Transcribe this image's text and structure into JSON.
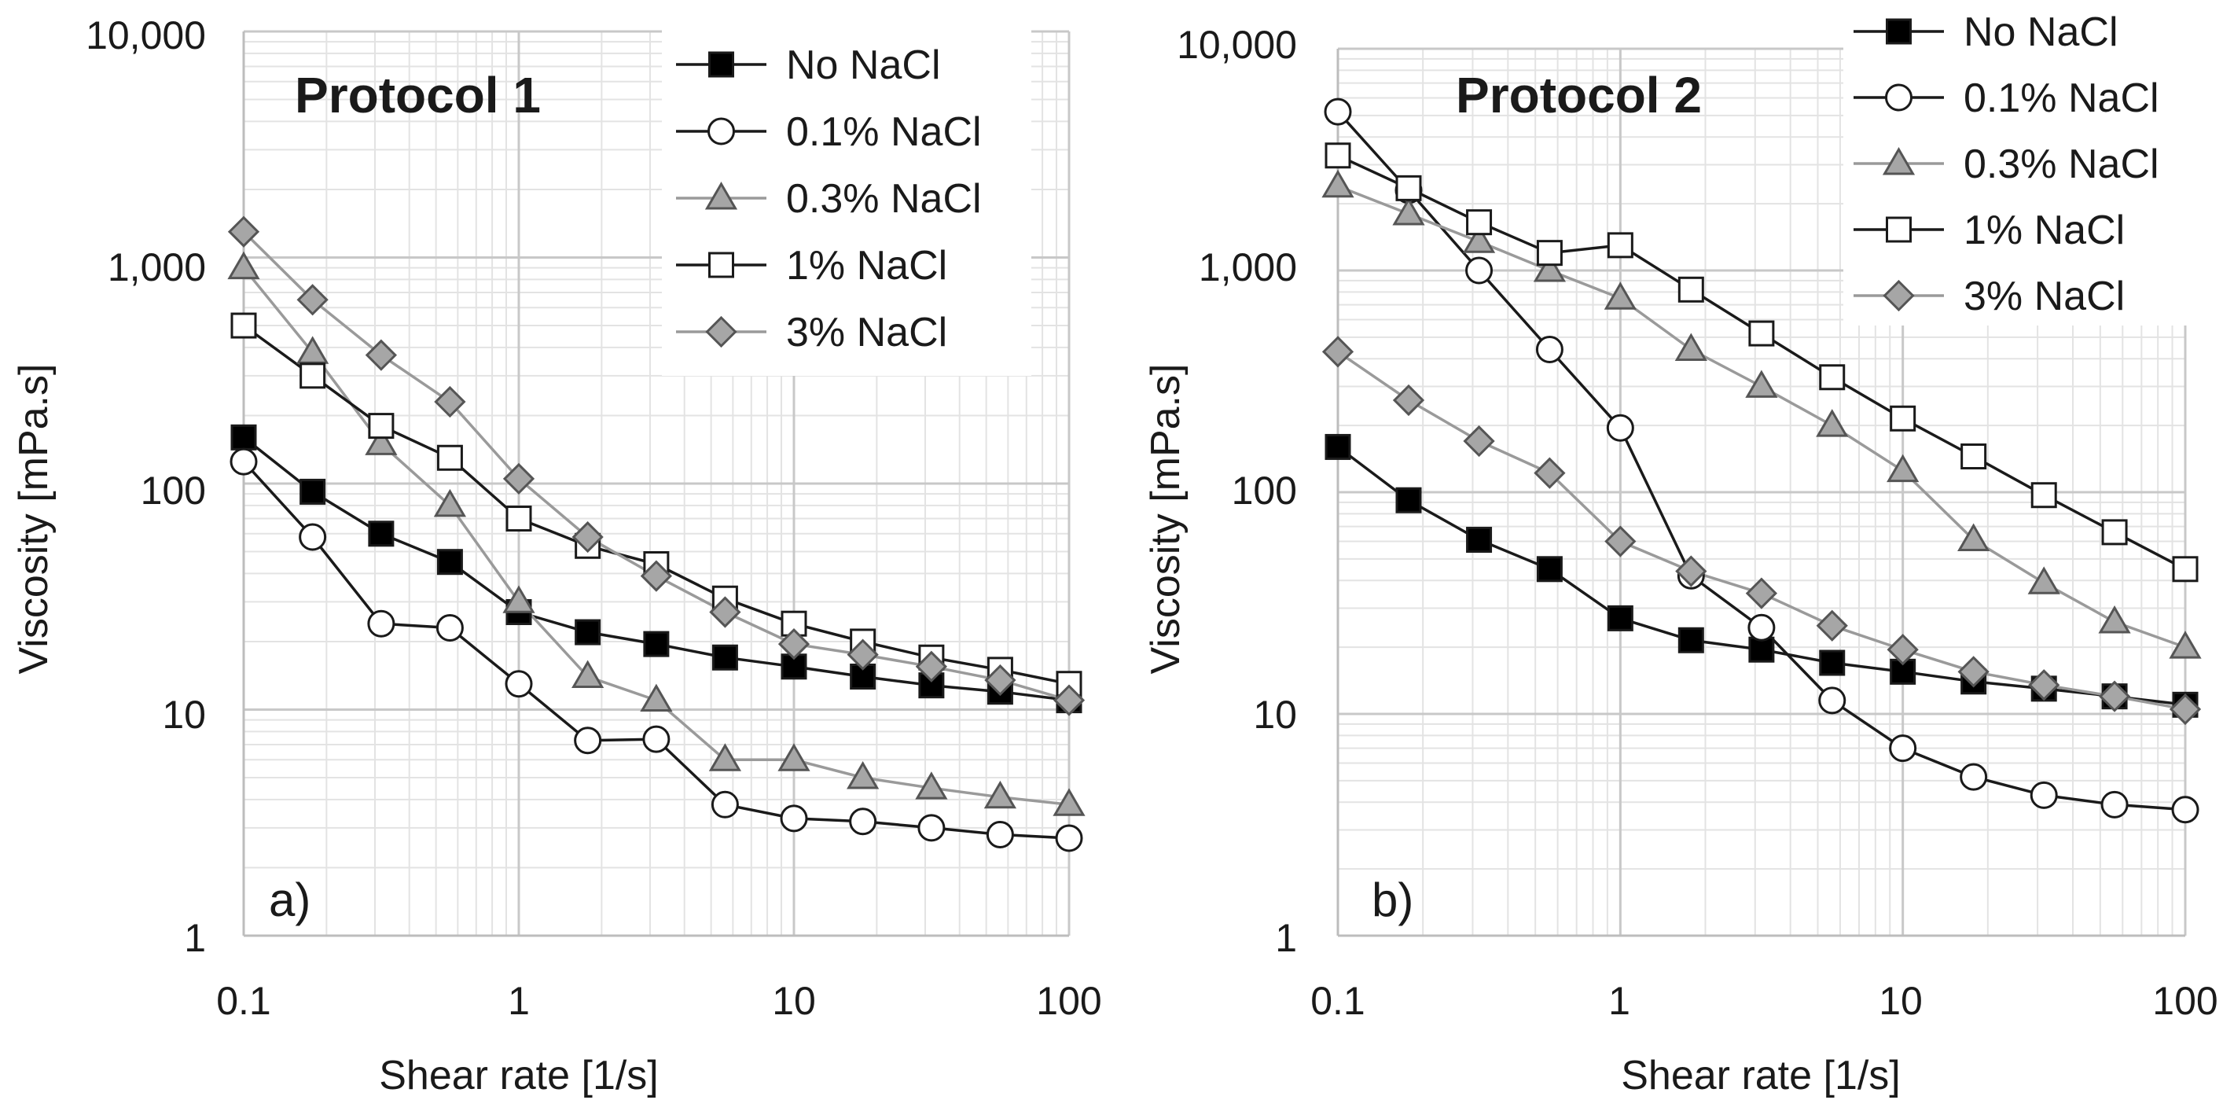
{
  "figure": {
    "panels": [
      {
        "id": "a",
        "title": "Protocol 1",
        "letter": "a)"
      },
      {
        "id": "b",
        "title": "Protocol 2",
        "letter": "b)"
      }
    ]
  },
  "chart_data": [
    {
      "type": "line",
      "title": "Protocol 1",
      "panel_label": "a)",
      "xlabel": "Shear rate [1/s]",
      "ylabel": "Viscosity [mPa.s]",
      "xscale": "log",
      "yscale": "log",
      "xlim": [
        0.1,
        100
      ],
      "ylim": [
        1,
        10000
      ],
      "xticks": [
        0.1,
        1,
        10,
        100
      ],
      "xtick_labels": [
        "0.1",
        "1",
        "10",
        "100"
      ],
      "yticks": [
        1,
        10,
        100,
        1000,
        10000
      ],
      "ytick_labels": [
        "1",
        "10",
        "100",
        "1,000",
        "10,000"
      ],
      "grid": true,
      "legend_position": "top-right",
      "x": [
        0.1,
        0.178,
        0.316,
        0.562,
        1,
        1.78,
        3.16,
        5.62,
        10,
        17.8,
        31.6,
        56.2,
        100
      ],
      "series": [
        {
          "name": "No NaCl",
          "marker": "square-filled",
          "line": "#1a1a1a",
          "fill": "#000000",
          "values": [
            160,
            92,
            60,
            45,
            27,
            22,
            19.5,
            17,
            15.5,
            14,
            12.8,
            12,
            11
          ]
        },
        {
          "name": "0.1% NaCl",
          "marker": "circle-open",
          "line": "#1a1a1a",
          "fill": "#ffffff",
          "values": [
            125,
            58,
            24,
            23,
            13,
            7.3,
            7.4,
            3.8,
            3.3,
            3.2,
            3.0,
            2.8,
            2.7
          ]
        },
        {
          "name": "0.3% NaCl",
          "marker": "triangle-gray",
          "line": "#9a9a9a",
          "fill": "#a6a6a6",
          "values": [
            900,
            380,
            150,
            80,
            30,
            14,
            11,
            6.0,
            6.0,
            5.0,
            4.5,
            4.1,
            3.8
          ]
        },
        {
          "name": "1% NaCl",
          "marker": "square-open",
          "line": "#1a1a1a",
          "fill": "#ffffff",
          "values": [
            500,
            300,
            180,
            130,
            70,
            53,
            44,
            31,
            24,
            20,
            17,
            15,
            13
          ]
        },
        {
          "name": "3% NaCl",
          "marker": "diamond-gray",
          "line": "#9a9a9a",
          "fill": "#a6a6a6",
          "values": [
            1300,
            650,
            370,
            230,
            105,
            58,
            39,
            27,
            19.5,
            17.5,
            15.5,
            13.5,
            11
          ]
        }
      ]
    },
    {
      "type": "line",
      "title": "Protocol 2",
      "panel_label": "b)",
      "xlabel": "Shear rate [1/s]",
      "ylabel": "Viscosity [mPa.s]",
      "xscale": "log",
      "yscale": "log",
      "xlim": [
        0.1,
        100
      ],
      "ylim": [
        1,
        10000
      ],
      "xticks": [
        0.1,
        1,
        10,
        100
      ],
      "xtick_labels": [
        "0.1",
        "1",
        "10",
        "100"
      ],
      "yticks": [
        1,
        10,
        100,
        1000,
        10000
      ],
      "ytick_labels": [
        "1",
        "10",
        "100",
        "1,000",
        "10,000"
      ],
      "grid": true,
      "legend_position": "top-right",
      "x": [
        0.1,
        0.178,
        0.316,
        0.562,
        1,
        1.78,
        3.16,
        5.62,
        10,
        17.8,
        31.6,
        56.2,
        100
      ],
      "series": [
        {
          "name": "No NaCl",
          "marker": "square-filled",
          "line": "#1a1a1a",
          "fill": "#000000",
          "values": [
            160,
            92,
            61,
            45,
            27,
            21.5,
            19.5,
            17,
            15.5,
            14,
            13,
            12,
            11
          ]
        },
        {
          "name": "0.1% NaCl",
          "marker": "circle-open",
          "line": "#1a1a1a",
          "fill": "#ffffff",
          "values": [
            5200,
            2300,
            1000,
            440,
            195,
            42,
            24.5,
            11.5,
            7.0,
            5.2,
            4.3,
            3.9,
            3.7
          ]
        },
        {
          "name": "0.3% NaCl",
          "marker": "triangle-gray",
          "line": "#9a9a9a",
          "fill": "#a6a6a6",
          "values": [
            2400,
            1800,
            1350,
            1000,
            750,
            440,
            300,
            200,
            125,
            61,
            39,
            26,
            20
          ]
        },
        {
          "name": "1% NaCl",
          "marker": "square-open",
          "line": "#1a1a1a",
          "fill": "#ffffff",
          "values": [
            3300,
            2350,
            1650,
            1200,
            1300,
            820,
            520,
            330,
            215,
            145,
            97,
            66,
            45
          ]
        },
        {
          "name": "3% NaCl",
          "marker": "diamond-gray",
          "line": "#9a9a9a",
          "fill": "#a6a6a6",
          "values": [
            430,
            260,
            170,
            122,
            60,
            44,
            35,
            25,
            19.5,
            15.5,
            13.5,
            12,
            10.5
          ]
        }
      ]
    }
  ]
}
